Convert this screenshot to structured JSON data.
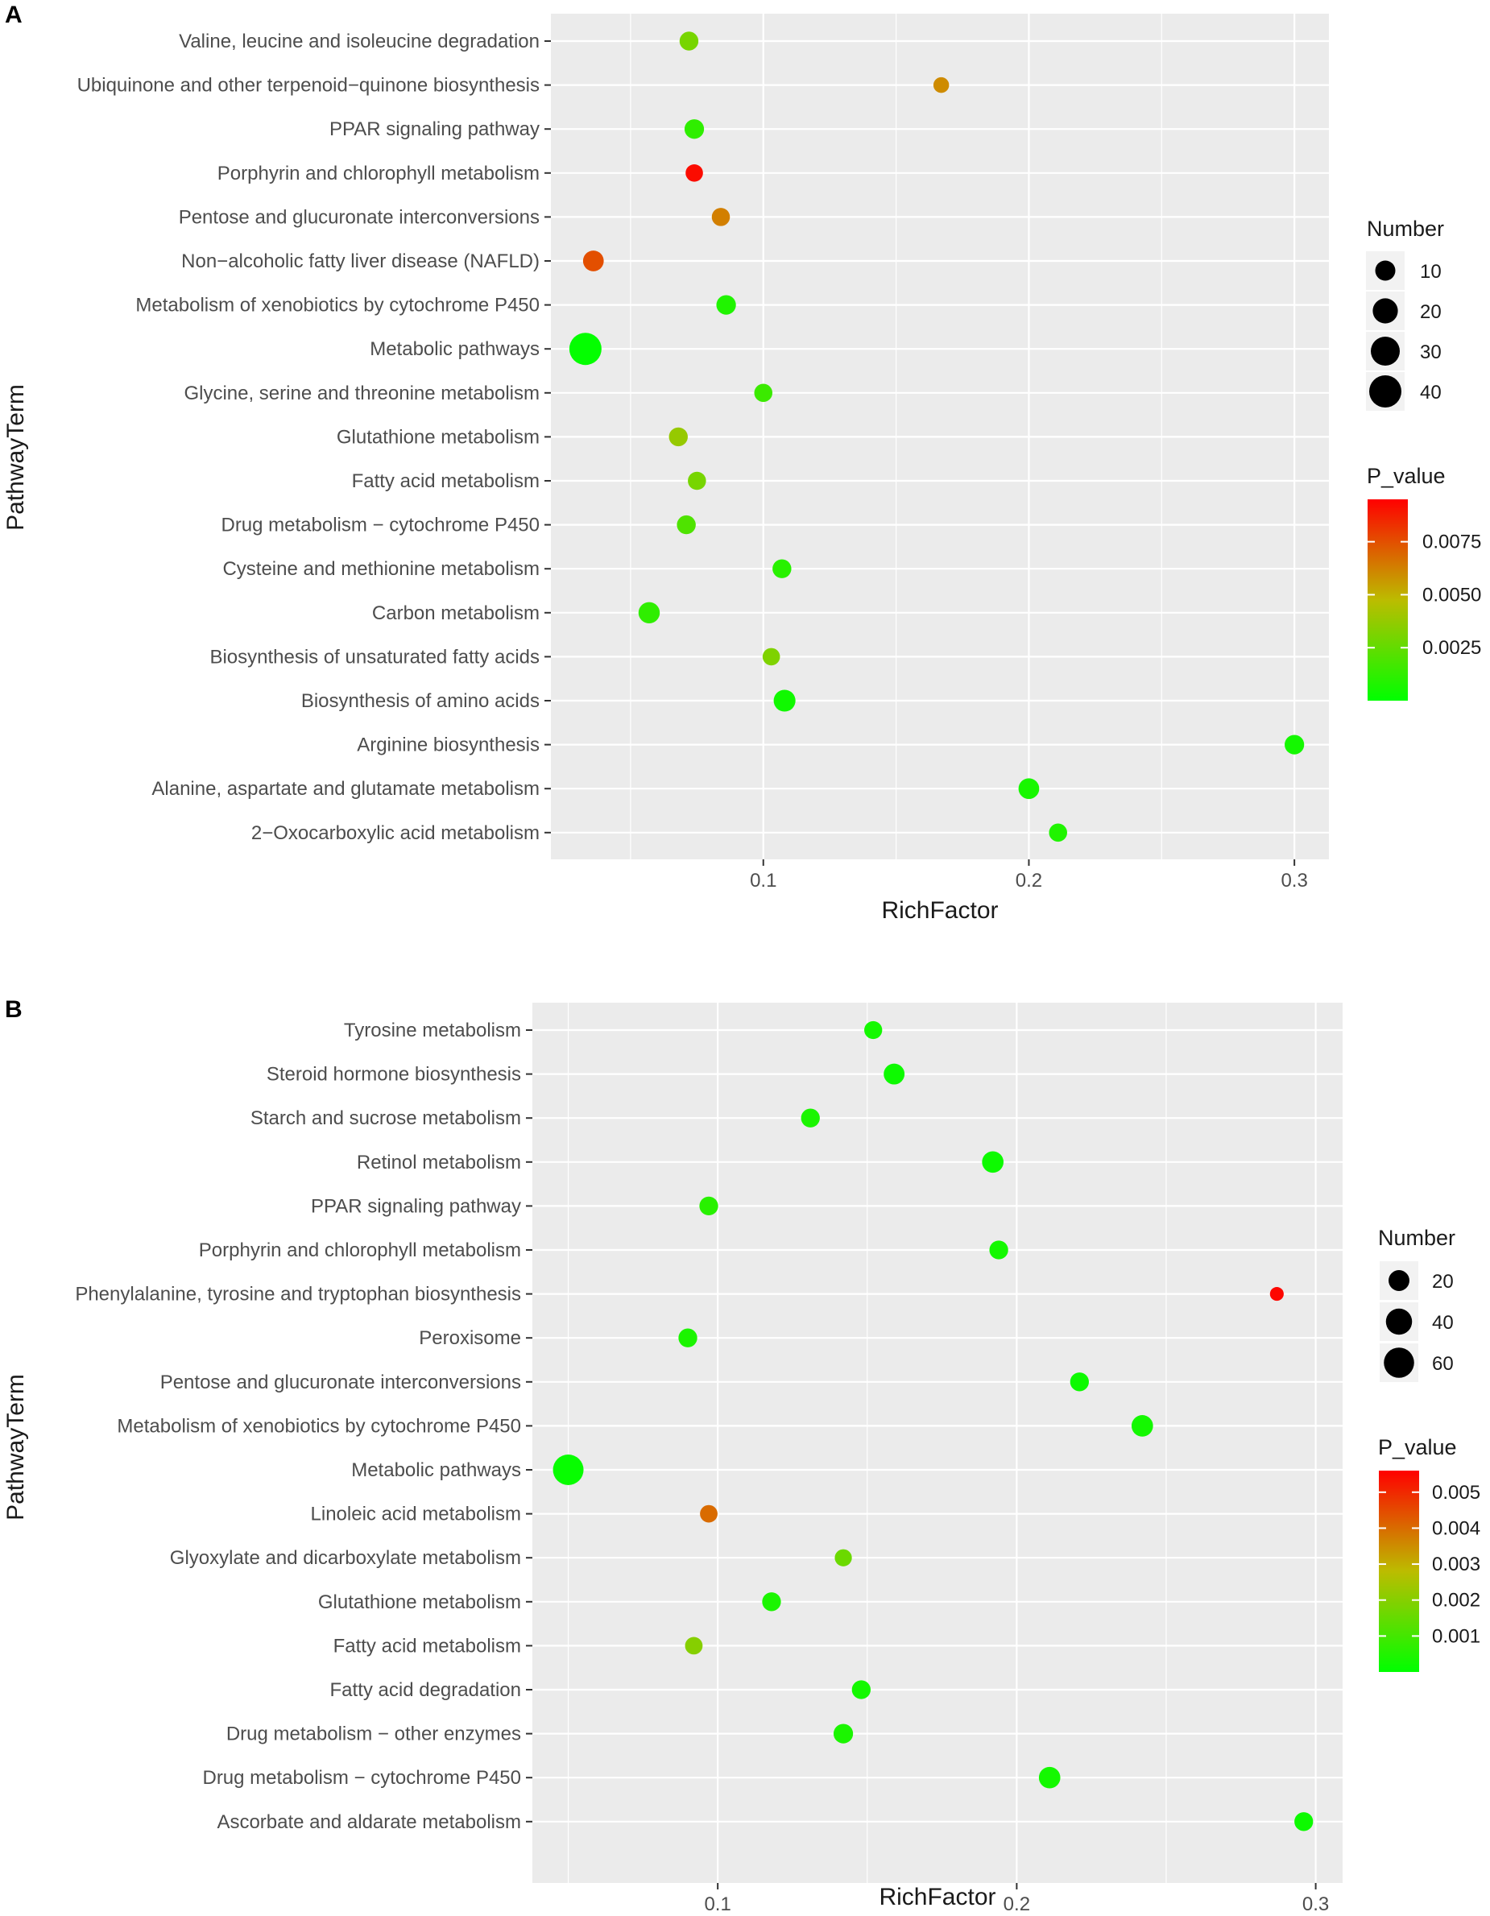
{
  "chart_data": [
    {
      "panel": "A",
      "type": "scatter",
      "xlabel": "RichFactor",
      "ylabel": "PathwayTerm",
      "xlim": [
        0.02,
        0.313
      ],
      "xticks": [
        0.1,
        0.2,
        0.3
      ],
      "xtick_labels": [
        "0.1",
        "0.2",
        "0.3"
      ],
      "grid": true,
      "size_legend": {
        "title": "Number",
        "values": [
          10,
          20,
          30,
          40
        ],
        "labels": [
          "10",
          "20",
          "30",
          "40"
        ]
      },
      "color_legend": {
        "title": "P_value",
        "min": 0.0,
        "max": 0.0095,
        "ticks": [
          0.0025,
          0.005,
          0.0075
        ],
        "labels": [
          "0.0025",
          "0.0050",
          "0.0075"
        ]
      },
      "categories": [
        "Valine, leucine and isoleucine degradation",
        "Ubiquinone and other terpenoid−quinone biosynthesis",
        "PPAR signaling pathway",
        "Porphyrin and chlorophyll metabolism",
        "Pentose and glucuronate interconversions",
        "Non−alcoholic fatty liver disease (NAFLD)",
        "Metabolism of xenobiotics by cytochrome P450",
        "Metabolic pathways",
        "Glycine, serine and threonine metabolism",
        "Glutathione metabolism",
        "Fatty acid metabolism",
        "Drug metabolism − cytochrome P450",
        "Cysteine and methionine metabolism",
        "Carbon metabolism",
        "Biosynthesis of unsaturated fatty acids",
        "Biosynthesis of amino acids",
        "Arginine biosynthesis",
        "Alanine, aspartate and glutamate metabolism",
        "2−Oxocarboxylic acid metabolism"
      ],
      "points": [
        {
          "x": 0.072,
          "number": 8,
          "p_value": 0.003
        },
        {
          "x": 0.167,
          "number": 4,
          "p_value": 0.006
        },
        {
          "x": 0.074,
          "number": 9,
          "p_value": 0.0012
        },
        {
          "x": 0.074,
          "number": 6,
          "p_value": 0.0092
        },
        {
          "x": 0.084,
          "number": 7,
          "p_value": 0.0063
        },
        {
          "x": 0.036,
          "number": 11,
          "p_value": 0.0075
        },
        {
          "x": 0.086,
          "number": 9,
          "p_value": 0.0008
        },
        {
          "x": 0.033,
          "number": 40,
          "p_value": 0.0001
        },
        {
          "x": 0.1,
          "number": 7,
          "p_value": 0.0015
        },
        {
          "x": 0.068,
          "number": 8,
          "p_value": 0.0038
        },
        {
          "x": 0.075,
          "number": 7,
          "p_value": 0.003
        },
        {
          "x": 0.071,
          "number": 8,
          "p_value": 0.002
        },
        {
          "x": 0.107,
          "number": 8,
          "p_value": 0.001
        },
        {
          "x": 0.057,
          "number": 12,
          "p_value": 0.0012
        },
        {
          "x": 0.103,
          "number": 6,
          "p_value": 0.0032
        },
        {
          "x": 0.108,
          "number": 13,
          "p_value": 0.0004
        },
        {
          "x": 0.3,
          "number": 9,
          "p_value": 0.0005
        },
        {
          "x": 0.2,
          "number": 11,
          "p_value": 0.0006
        },
        {
          "x": 0.211,
          "number": 7,
          "p_value": 0.0008
        }
      ]
    },
    {
      "panel": "B",
      "type": "scatter",
      "xlabel": "RichFactor",
      "ylabel": "PathwayTerm",
      "xlim": [
        0.038,
        0.309
      ],
      "xticks": [
        0.1,
        0.2,
        0.3
      ],
      "xtick_labels": [
        "0.1",
        "0.2",
        "0.3"
      ],
      "grid": true,
      "size_legend": {
        "title": "Number",
        "values": [
          20,
          40,
          60
        ],
        "labels": [
          "20",
          "40",
          "60"
        ]
      },
      "color_legend": {
        "title": "P_value",
        "min": 0.0,
        "max": 0.0056,
        "ticks": [
          0.001,
          0.002,
          0.003,
          0.004,
          0.005
        ],
        "labels": [
          "0.001",
          "0.002",
          "0.003",
          "0.004",
          "0.005"
        ]
      },
      "categories": [
        "Tyrosine metabolism",
        "Steroid hormone biosynthesis",
        "Starch and sucrose metabolism",
        "Retinol metabolism",
        "PPAR signaling pathway",
        "Porphyrin and chlorophyll metabolism",
        "Phenylalanine, tyrosine and tryptophan biosynthesis",
        "Peroxisome",
        "Pentose and glucuronate interconversions",
        "Metabolism of xenobiotics by cytochrome P450",
        "Metabolic pathways",
        "Linoleic acid metabolism",
        "Glyoxylate and dicarboxylate metabolism",
        "Glutathione metabolism",
        "Fatty acid metabolism",
        "Fatty acid degradation",
        "Drug metabolism − other enzymes",
        "Drug metabolism − cytochrome P450",
        "Ascorbate and aldarate metabolism"
      ],
      "points": [
        {
          "x": 0.152,
          "number": 12,
          "p_value": 0.0003
        },
        {
          "x": 0.159,
          "number": 20,
          "p_value": 0.0002
        },
        {
          "x": 0.131,
          "number": 14,
          "p_value": 0.0004
        },
        {
          "x": 0.192,
          "number": 22,
          "p_value": 0.0002
        },
        {
          "x": 0.097,
          "number": 14,
          "p_value": 0.0006
        },
        {
          "x": 0.194,
          "number": 14,
          "p_value": 0.0003
        },
        {
          "x": 0.287,
          "number": 4,
          "p_value": 0.0055
        },
        {
          "x": 0.09,
          "number": 14,
          "p_value": 0.0004
        },
        {
          "x": 0.221,
          "number": 14,
          "p_value": 0.0002
        },
        {
          "x": 0.242,
          "number": 22,
          "p_value": 0.0003
        },
        {
          "x": 0.05,
          "number": 62,
          "p_value": 0.0001
        },
        {
          "x": 0.097,
          "number": 11,
          "p_value": 0.004
        },
        {
          "x": 0.142,
          "number": 10,
          "p_value": 0.0016
        },
        {
          "x": 0.118,
          "number": 14,
          "p_value": 0.0004
        },
        {
          "x": 0.092,
          "number": 11,
          "p_value": 0.002
        },
        {
          "x": 0.148,
          "number": 14,
          "p_value": 0.0003
        },
        {
          "x": 0.142,
          "number": 16,
          "p_value": 0.0004
        },
        {
          "x": 0.211,
          "number": 22,
          "p_value": 0.0003
        },
        {
          "x": 0.296,
          "number": 14,
          "p_value": 0.0002
        }
      ]
    }
  ]
}
